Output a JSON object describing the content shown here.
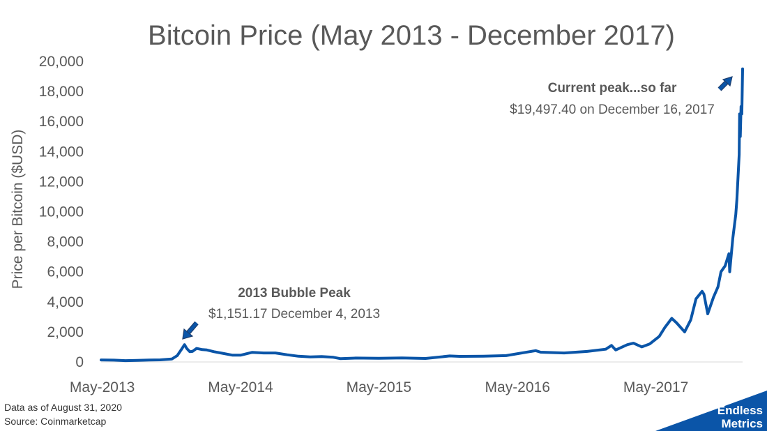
{
  "chart_data": {
    "type": "line",
    "title": "Bitcoin Price (May 2013 - December 2017)",
    "ylabel": "Price per Bitcoin ($USD)",
    "xlabel": "",
    "ylim": [
      0,
      20000
    ],
    "yticks": [
      0,
      2000,
      4000,
      6000,
      8000,
      10000,
      12000,
      14000,
      16000,
      18000,
      20000
    ],
    "ytick_labels": [
      "0",
      "2,000",
      "4,000",
      "6,000",
      "8,000",
      "10,000",
      "12,000",
      "14,000",
      "16,000",
      "18,000",
      "20,000"
    ],
    "xlim": [
      "2013-04-28",
      "2017-12-16"
    ],
    "xticks": [
      "2013-05-01",
      "2014-05-01",
      "2015-05-01",
      "2016-05-01",
      "2017-05-01"
    ],
    "xtick_labels": [
      "May-2013",
      "May-2014",
      "May-2015",
      "May-2016",
      "May-2017"
    ],
    "grid": false,
    "legend": "none",
    "line_color": "#0a55a8",
    "series": [
      {
        "x": [
          "2013-04-28",
          "2013-06-01",
          "2013-07-01",
          "2013-08-01",
          "2013-09-01",
          "2013-10-01",
          "2013-11-01",
          "2013-11-15",
          "2013-11-25",
          "2013-12-04",
          "2013-12-10",
          "2013-12-18",
          "2013-12-25",
          "2014-01-05",
          "2014-01-20",
          "2014-02-01",
          "2014-02-20",
          "2014-03-10",
          "2014-04-10",
          "2014-05-01",
          "2014-06-01",
          "2014-07-01",
          "2014-08-01",
          "2014-09-01",
          "2014-10-01",
          "2014-11-01",
          "2014-12-01",
          "2015-01-01",
          "2015-01-20",
          "2015-03-01",
          "2015-05-01",
          "2015-07-01",
          "2015-09-01",
          "2015-11-04",
          "2015-12-01",
          "2016-02-01",
          "2016-04-01",
          "2016-06-01",
          "2016-06-18",
          "2016-07-01",
          "2016-09-01",
          "2016-11-01",
          "2016-12-20",
          "2017-01-04",
          "2017-01-15",
          "2017-02-15",
          "2017-03-03",
          "2017-03-25",
          "2017-04-15",
          "2017-05-10",
          "2017-05-25",
          "2017-06-12",
          "2017-06-25",
          "2017-07-16",
          "2017-08-01",
          "2017-08-15",
          "2017-08-31",
          "2017-09-05",
          "2017-09-15",
          "2017-09-30",
          "2017-10-12",
          "2017-10-20",
          "2017-10-31",
          "2017-11-10",
          "2017-11-12",
          "2017-11-20",
          "2017-11-28",
          "2017-12-01",
          "2017-12-07",
          "2017-12-08",
          "2017-12-10",
          "2017-12-12",
          "2017-12-14",
          "2017-12-16"
        ],
        "y": [
          135,
          120,
          90,
          105,
          130,
          140,
          200,
          420,
          800,
          1151,
          900,
          680,
          700,
          900,
          820,
          800,
          680,
          600,
          450,
          450,
          640,
          600,
          600,
          480,
          380,
          340,
          360,
          310,
          220,
          260,
          240,
          270,
          230,
          400,
          370,
          380,
          420,
          680,
          750,
          650,
          600,
          700,
          850,
          1100,
          800,
          1150,
          1250,
          1000,
          1200,
          1700,
          2300,
          2900,
          2600,
          2000,
          2800,
          4200,
          4700,
          4500,
          3200,
          4300,
          5000,
          6000,
          6400,
          7200,
          6000,
          8200,
          9800,
          10800,
          13800,
          16500,
          15000,
          17000,
          16500,
          19497.4
        ]
      }
    ],
    "annotations": [
      {
        "bold": "2013 Bubble Peak",
        "text": "$1,151.17 December 4, 2013"
      },
      {
        "bold": "Current peak...so far",
        "text": "$19,497.40 on December 16, 2017"
      }
    ]
  },
  "footnote": {
    "line1": "Data as of August 31, 2020",
    "line2": "Source: Coinmarketcap"
  },
  "brand": {
    "line1": "Endless",
    "line2": "Metrics",
    "color": "#0b55a8"
  }
}
